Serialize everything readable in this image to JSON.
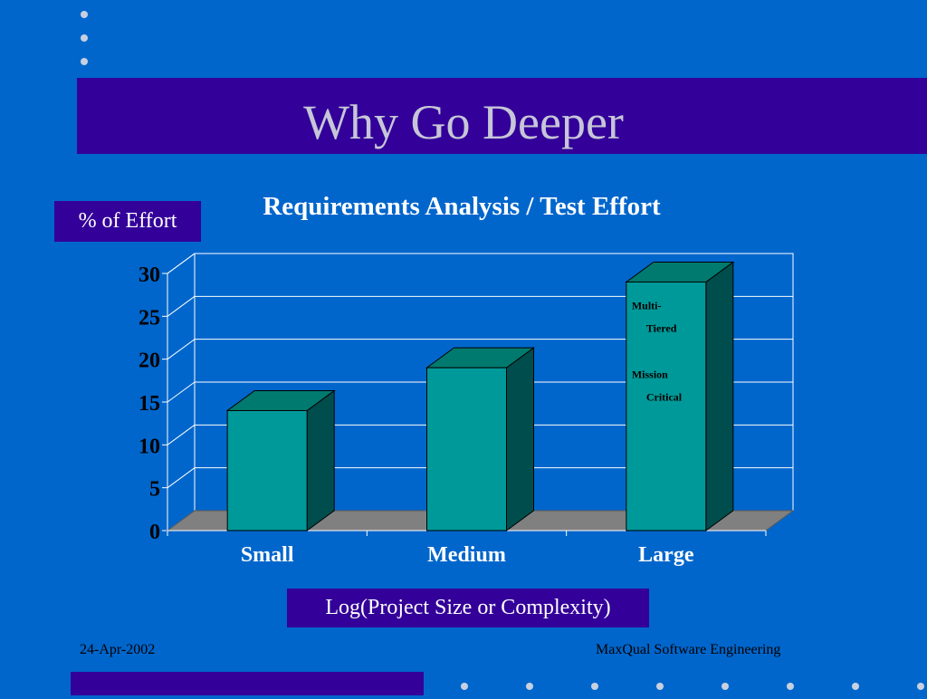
{
  "slide": {
    "title": "Why Go Deeper",
    "footer_date": "24-Apr-2002",
    "footer_org": "MaxQual Software Engineering"
  },
  "chart_data": {
    "type": "bar",
    "title": "Requirements Analysis / Test Effort",
    "ylabel": "% of Effort",
    "xlabel": "Log(Project Size or Complexity)",
    "categories": [
      "Small",
      "Medium",
      "Large"
    ],
    "values": [
      14,
      19,
      29
    ],
    "ylim": [
      0,
      30
    ],
    "yticks": [
      "0",
      "5",
      "10",
      "15",
      "20",
      "25",
      "30"
    ],
    "grid": true,
    "style": "3d",
    "annotations": [
      {
        "category": "Large",
        "lines": [
          "Multi-",
          "Tiered",
          "Mission",
          "Critical"
        ]
      }
    ],
    "colors": {
      "bar_front": "#009999",
      "bar_side": "#004d4d",
      "bar_top": "#007a6e",
      "floor": "#808080",
      "grid": "#ffffff",
      "text": "#ffffff"
    }
  }
}
